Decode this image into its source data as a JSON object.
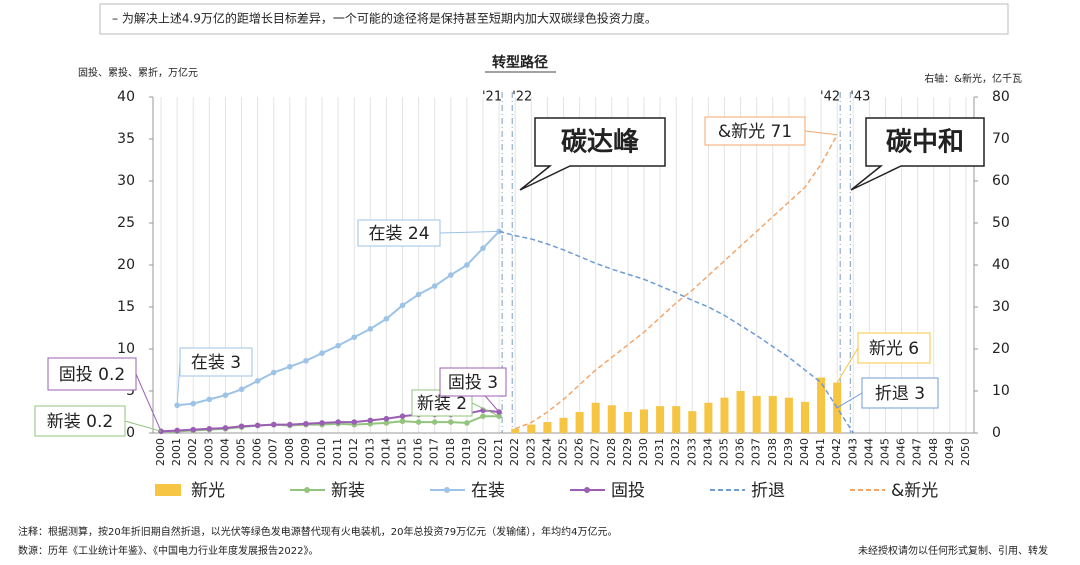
{
  "header": "– 为解决上述4.9万亿的距增长目标差异，一个可能的途径将是保持甚至短期内加大双碳绿色投资力度。",
  "chart_data": {
    "type": "combo",
    "title": "转型路径",
    "ylabel": "固投、累投、累折，万亿元",
    "y2label": "右轴：&新光，亿千瓦",
    "categories": [
      "2000",
      "2001",
      "2002",
      "2003",
      "2004",
      "2005",
      "2006",
      "2007",
      "2008",
      "2009",
      "2010",
      "2011",
      "2012",
      "2013",
      "2014",
      "2015",
      "2016",
      "2017",
      "2018",
      "2019",
      "2020",
      "2021",
      "2022",
      "2023",
      "2024",
      "2025",
      "2026",
      "2027",
      "2028",
      "2029",
      "2030",
      "2031",
      "2032",
      "2033",
      "2034",
      "2035",
      "2036",
      "2037",
      "2038",
      "2039",
      "2040",
      "2041",
      "2042",
      "2043",
      "2044",
      "2045",
      "2046",
      "2047",
      "2048",
      "2049",
      "2050"
    ],
    "ylim": [
      0,
      40
    ],
    "yticks": [
      0,
      5,
      10,
      15,
      20,
      25,
      30,
      35,
      40
    ],
    "y2lim": [
      0,
      80
    ],
    "y2ticks": [
      0,
      10,
      20,
      30,
      40,
      50,
      60,
      70,
      80
    ],
    "grid": "x",
    "series": [
      {
        "name": "新光",
        "type": "bar",
        "color": "#f6c544",
        "values": [
          null,
          null,
          null,
          null,
          null,
          null,
          null,
          null,
          null,
          null,
          null,
          null,
          null,
          null,
          null,
          null,
          null,
          null,
          null,
          null,
          null,
          null,
          0.5,
          1,
          1.3,
          1.8,
          2.5,
          3.6,
          3.3,
          2.5,
          2.8,
          3.2,
          3.2,
          2.6,
          3.6,
          4.2,
          5,
          4.4,
          4.4,
          4.2,
          3.7,
          6.6,
          6,
          null,
          null,
          null,
          null,
          null,
          null,
          null,
          null
        ]
      },
      {
        "name": "新装",
        "type": "line",
        "color": "#93c47d",
        "marker": true,
        "values": [
          0.2,
          0.2,
          0.3,
          0.4,
          0.5,
          0.7,
          0.9,
          1.0,
          0.9,
          1.0,
          1.0,
          1.1,
          1.0,
          1.1,
          1.2,
          1.4,
          1.3,
          1.3,
          1.3,
          1.2,
          2.0,
          2.0,
          null,
          null,
          null,
          null,
          null,
          null,
          null,
          null,
          null,
          null,
          null,
          null,
          null,
          null,
          null,
          null,
          null,
          null,
          null,
          null,
          null,
          null,
          null,
          null,
          null,
          null,
          null,
          null,
          null
        ]
      },
      {
        "name": "在装",
        "type": "line",
        "color": "#9dc3e6",
        "marker": true,
        "values": [
          null,
          3.3,
          3.5,
          4,
          4.5,
          5.2,
          6.2,
          7.2,
          7.9,
          8.6,
          9.5,
          10.4,
          11.4,
          12.4,
          13.6,
          15.2,
          16.5,
          17.5,
          18.8,
          20,
          22,
          24,
          null,
          null,
          null,
          null,
          null,
          null,
          null,
          null,
          null,
          null,
          null,
          null,
          null,
          null,
          null,
          null,
          null,
          null,
          null,
          null,
          null,
          null,
          null,
          null,
          null,
          null,
          null,
          null,
          null
        ]
      },
      {
        "name": "固投",
        "type": "line",
        "color": "#9a5fb4",
        "marker": true,
        "values": [
          0.2,
          0.3,
          0.4,
          0.5,
          0.6,
          0.8,
          0.9,
          1.0,
          1.0,
          1.1,
          1.2,
          1.3,
          1.3,
          1.5,
          1.7,
          2.0,
          2.2,
          2.2,
          2.2,
          2.3,
          2.7,
          2.5,
          null,
          null,
          null,
          null,
          null,
          null,
          null,
          null,
          null,
          null,
          null,
          null,
          null,
          null,
          null,
          null,
          null,
          null,
          null,
          null,
          null,
          null,
          null,
          null,
          null,
          null,
          null,
          null,
          null
        ]
      },
      {
        "name": "折退",
        "type": "line",
        "color": "#6f9bd6",
        "dash": true,
        "values": [
          null,
          null,
          null,
          null,
          null,
          null,
          null,
          null,
          null,
          null,
          null,
          null,
          null,
          null,
          null,
          null,
          null,
          null,
          null,
          null,
          null,
          24,
          23.5,
          23.1,
          22.5,
          21.8,
          21,
          20.2,
          19.5,
          18.9,
          18.3,
          17.5,
          16.7,
          15.8,
          15,
          14,
          12.8,
          11.6,
          10.3,
          9,
          7.5,
          6,
          3,
          0,
          null,
          null,
          null,
          null,
          null,
          null,
          null
        ]
      },
      {
        "name": "&新光",
        "type": "line",
        "color": "#f4a66a",
        "dash": true,
        "axis": "y2",
        "values": [
          null,
          null,
          null,
          null,
          null,
          null,
          null,
          null,
          null,
          null,
          null,
          null,
          null,
          null,
          null,
          null,
          null,
          null,
          null,
          null,
          null,
          null,
          1,
          2.5,
          5,
          8,
          11.5,
          15,
          18,
          21,
          24,
          27.5,
          31,
          34,
          37.5,
          41,
          44.5,
          48,
          51.5,
          55,
          58.5,
          64,
          71,
          null,
          null,
          null,
          null,
          null,
          null,
          null,
          null
        ]
      }
    ],
    "markers": [
      {
        "label": "'21",
        "category": "2021"
      },
      {
        "label": "'22",
        "category": "2022"
      },
      {
        "label": "'42",
        "category": "2042"
      },
      {
        "label": "'43",
        "category": "2043"
      }
    ],
    "annotations": [
      "在装 24",
      "在装 3",
      "固投 0.2",
      "新装 0.2",
      "新装 2",
      "固投 3",
      "&新光 71",
      "新光 6",
      "折退 3",
      "碳达峰",
      "碳中和"
    ],
    "notes": [
      "注释：根据测算，按20年折旧期自然折退，以光伏等绿色发电源替代现有火电装机，20年总投资79万亿元（发输储），年均约4万亿元。",
      "数源：历年《工业统计年鉴》、《中国电力行业年度发展报告2022》。"
    ],
    "copyright": "未经授权请勿以任何形式复制、引用、转发"
  }
}
